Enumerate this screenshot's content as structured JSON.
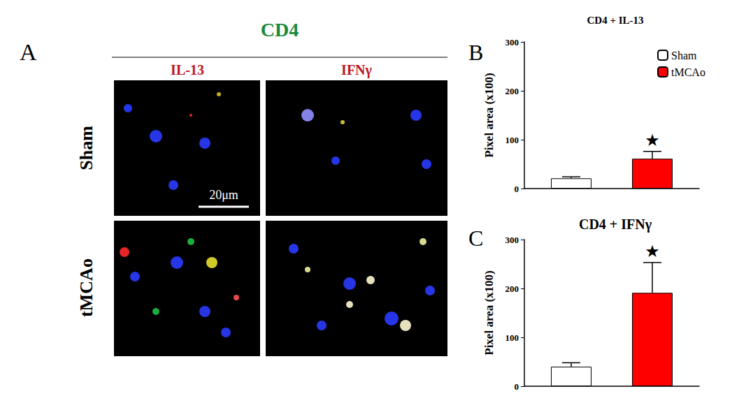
{
  "figure": {
    "panel_a": {
      "label": "A",
      "stain": "CD4",
      "columns": [
        "IL-13",
        "IFNγ"
      ],
      "rows": [
        "Sham",
        "tMCAo"
      ],
      "scale_bar": "20μm"
    },
    "panel_labels": [
      "B",
      "C"
    ]
  },
  "chart_data": [
    {
      "type": "bar",
      "title": "CD4 + IL-13",
      "y_label": "Pixel area (x100)",
      "categories": [
        null
      ],
      "series": [
        {
          "name": "Sham",
          "color": "#ffffff",
          "values": [
            21
          ],
          "errors": [
            3
          ]
        },
        {
          "name": "tMCAo",
          "color": "#ff0000",
          "values": [
            61
          ],
          "errors": [
            15
          ]
        }
      ],
      "annotations": [
        {
          "series": "tMCAo",
          "text": "★"
        }
      ],
      "ylim": [
        0,
        300
      ],
      "yticks": [
        0,
        100,
        200,
        300
      ],
      "grid": false,
      "legend": "upper right"
    },
    {
      "type": "bar",
      "title": "CD4 + IFNγ",
      "y_label": "Pixel area (x100)",
      "categories": [
        null
      ],
      "series": [
        {
          "name": "Sham",
          "color": "#ffffff",
          "values": [
            40
          ],
          "errors": [
            8
          ]
        },
        {
          "name": "tMCAo",
          "color": "#ff0000",
          "values": [
            191
          ],
          "errors": [
            62
          ]
        }
      ],
      "annotations": [
        {
          "series": "tMCAo",
          "text": "★"
        }
      ],
      "ylim": [
        0,
        300
      ],
      "yticks": [
        0,
        100,
        200,
        300
      ],
      "grid": false
    }
  ]
}
